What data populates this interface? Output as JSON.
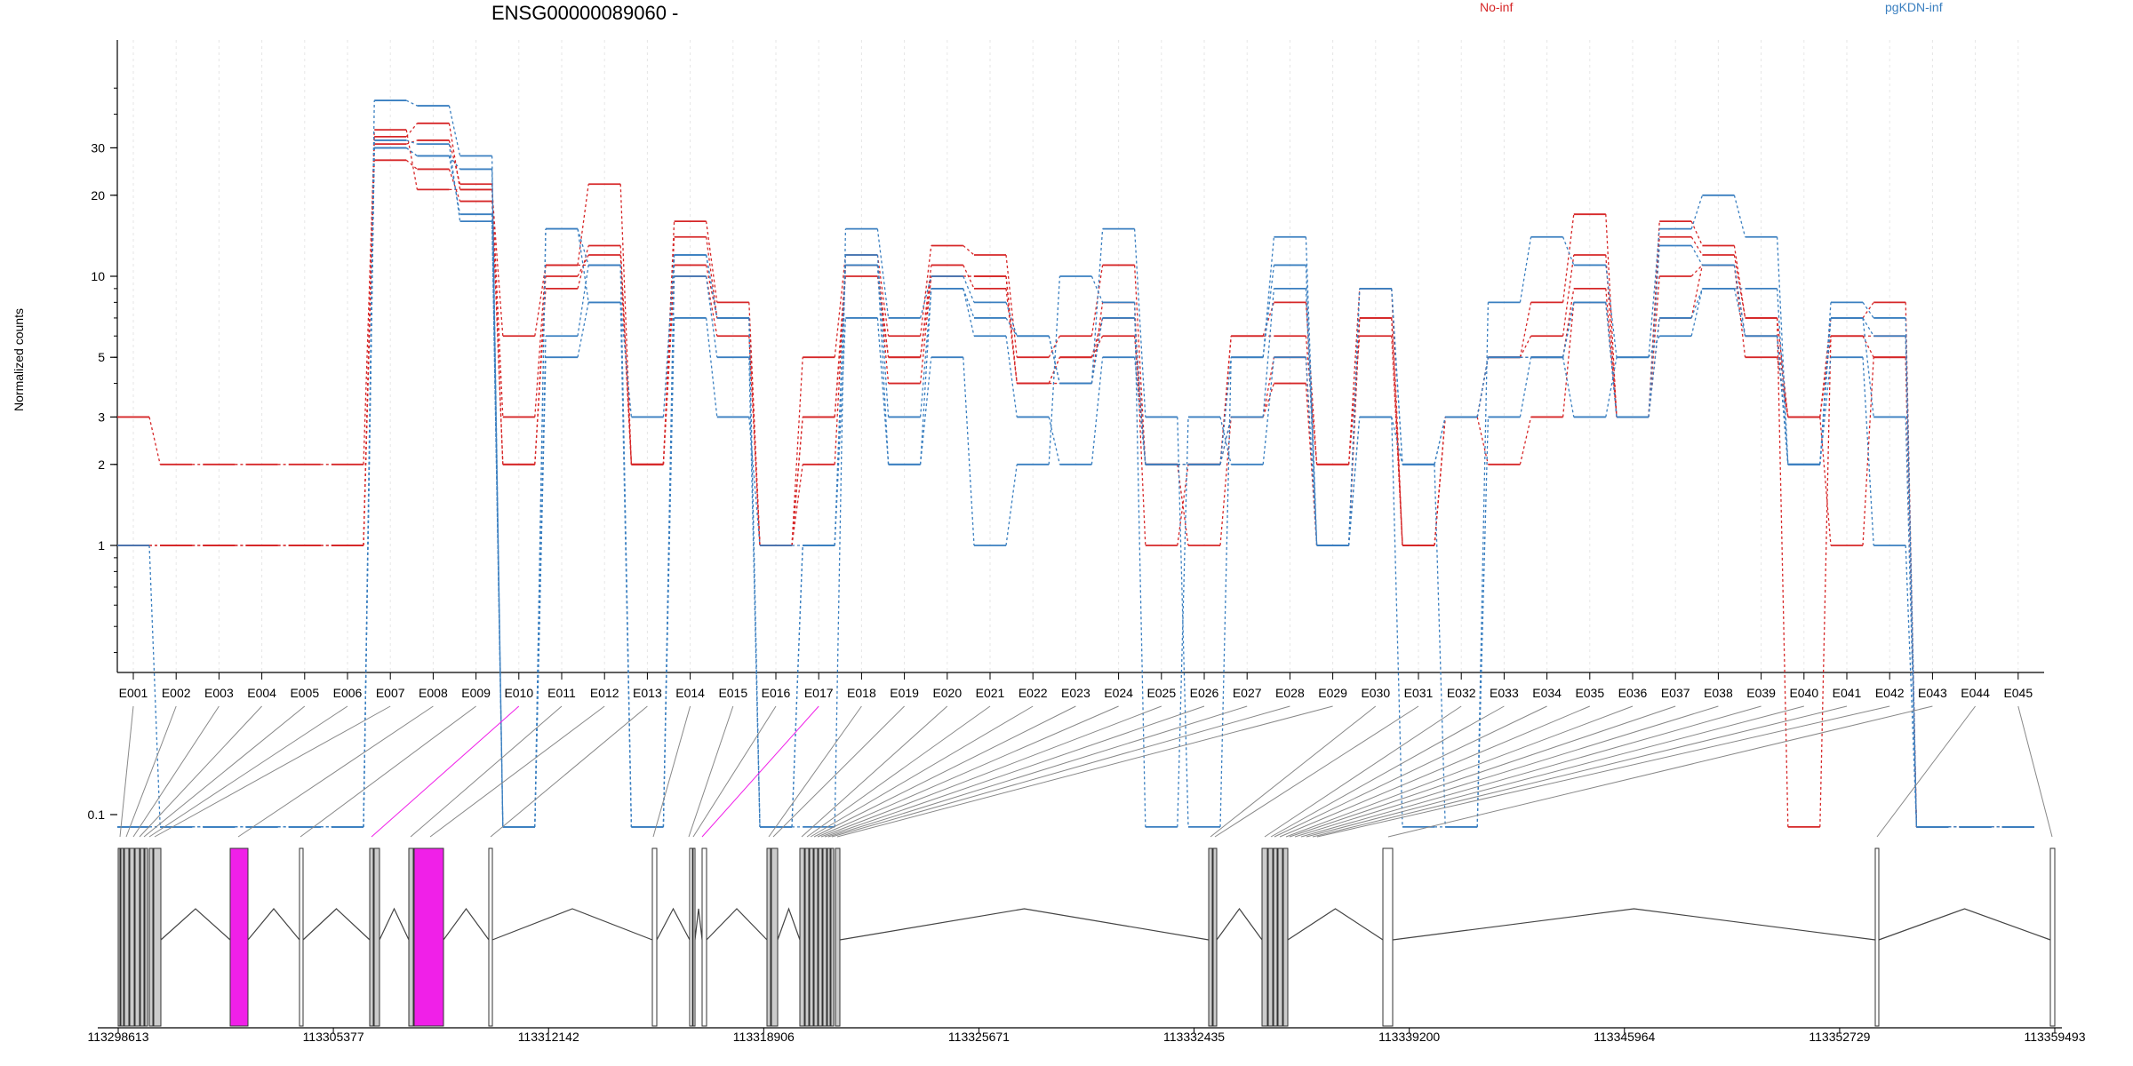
{
  "chart_data": {
    "type": "line",
    "title": "ENSG00000089060 -",
    "ylabel": "Normalized counts",
    "xlabel": "",
    "y_scale": "log",
    "y_ticks": [
      0.1,
      1,
      2,
      3,
      5,
      10,
      20,
      30
    ],
    "y_tick_labels": [
      "0.1",
      "1",
      "2",
      "3",
      "5",
      "10",
      "20",
      "30"
    ],
    "ylim": [
      0.085,
      60
    ],
    "grid": "vertical dotted",
    "legend_position": "top",
    "categories": [
      "E001",
      "E002",
      "E003",
      "E004",
      "E005",
      "E006",
      "E007",
      "E008",
      "E009",
      "E010",
      "E011",
      "E012",
      "E013",
      "E014",
      "E015",
      "E016",
      "E017",
      "E018",
      "E019",
      "E020",
      "E021",
      "E022",
      "E023",
      "E024",
      "E025",
      "E026",
      "E027",
      "E028",
      "E029",
      "E030",
      "E031",
      "E032",
      "E033",
      "E034",
      "E035",
      "E036",
      "E037",
      "E038",
      "E039",
      "E040",
      "E041",
      "E042",
      "E043",
      "E044",
      "E045"
    ],
    "legend": [
      {
        "name": "No-inf",
        "color": "#d62728"
      },
      {
        "name": "pgKDN-inf",
        "color": "#3a7fc0"
      }
    ],
    "series": [
      {
        "group": "No-inf",
        "color": "#d62728",
        "values": [
          3,
          2,
          2,
          2,
          2,
          2,
          33,
          37,
          21,
          6,
          11,
          22,
          2,
          16,
          8,
          1,
          5,
          12,
          6,
          13,
          12,
          5,
          6,
          11,
          2,
          2,
          6,
          8,
          2,
          9,
          1,
          3,
          5,
          8,
          17,
          3,
          16,
          13,
          7,
          3,
          7,
          8,
          0.09,
          0.09,
          0.09
        ]
      },
      {
        "group": "No-inf",
        "color": "#d62728",
        "values": [
          1,
          1,
          1,
          1,
          1,
          1,
          27,
          25,
          19,
          2,
          9,
          13,
          2,
          14,
          7,
          1,
          3,
          10,
          5,
          10,
          10,
          4,
          5,
          6,
          2,
          2,
          6,
          6,
          2,
          6,
          1,
          3,
          5,
          6,
          12,
          3,
          14,
          12,
          7,
          0.09,
          6,
          5,
          0.09,
          0.09,
          0.09
        ]
      },
      {
        "group": "No-inf",
        "color": "#d62728",
        "values": [
          1,
          1,
          1,
          1,
          1,
          1,
          31,
          32,
          22,
          3,
          11,
          11,
          2,
          11,
          7,
          1,
          2,
          11,
          5,
          11,
          9,
          4,
          5,
          7,
          2,
          1,
          3,
          5,
          1,
          7,
          1,
          3,
          5,
          5,
          9,
          3,
          10,
          11,
          6,
          3,
          6,
          6,
          0.09,
          0.09,
          0.09
        ]
      },
      {
        "group": "No-inf",
        "color": "#d62728",
        "values": [
          1,
          1,
          1,
          1,
          1,
          1,
          35,
          21,
          21,
          2,
          10,
          12,
          2,
          10,
          6,
          1,
          3,
          11,
          4,
          10,
          10,
          4,
          4,
          8,
          1,
          2,
          3,
          4,
          1,
          7,
          1,
          3,
          2,
          3,
          8,
          3,
          7,
          11,
          5,
          3,
          1,
          5,
          0.09,
          0.09,
          0.09
        ]
      },
      {
        "group": "pgKDN-inf",
        "color": "#3a7fc0",
        "values": [
          1,
          0.09,
          0.09,
          0.09,
          0.09,
          0.09,
          45,
          43,
          28,
          0.09,
          15,
          8,
          3,
          12,
          7,
          0.09,
          0.09,
          15,
          7,
          10,
          8,
          6,
          4,
          15,
          3,
          0.09,
          5,
          14,
          1,
          9,
          2,
          0.09,
          8,
          14,
          11,
          5,
          15,
          20,
          14,
          2,
          8,
          7,
          0.09,
          0.09,
          0.09
        ]
      },
      {
        "group": "pgKDN-inf",
        "color": "#3a7fc0",
        "values": [
          0.09,
          0.09,
          0.09,
          0.09,
          0.09,
          0.09,
          32,
          31,
          16,
          0.09,
          6,
          11,
          0.09,
          10,
          5,
          0.09,
          1,
          12,
          3,
          9,
          6,
          3,
          2,
          5,
          2,
          2,
          3,
          9,
          1,
          3,
          0.09,
          0.09,
          3,
          5,
          8,
          3,
          13,
          11,
          6,
          2,
          7,
          3,
          0.09,
          0.09,
          0.09
        ]
      },
      {
        "group": "pgKDN-inf",
        "color": "#3a7fc0",
        "values": [
          0.09,
          0.09,
          0.09,
          0.09,
          0.09,
          0.09,
          30,
          28,
          17,
          0.09,
          5,
          8,
          0.09,
          7,
          3,
          1,
          1,
          7,
          2,
          5,
          1,
          2,
          10,
          8,
          0.09,
          3,
          2,
          5,
          1,
          3,
          2,
          3,
          5,
          5,
          3,
          5,
          6,
          9,
          6,
          2,
          5,
          1,
          0.09,
          0.09,
          0.09
        ]
      },
      {
        "group": "pgKDN-inf",
        "color": "#3a7fc0",
        "values": [
          0.09,
          0.09,
          0.09,
          0.09,
          0.09,
          0.09,
          30,
          28,
          25,
          0.09,
          15,
          11,
          0.09,
          12,
          7,
          0.09,
          1,
          11,
          2,
          9,
          7,
          6,
          4,
          7,
          2,
          2,
          5,
          11,
          1,
          9,
          2,
          3,
          5,
          5,
          8,
          3,
          7,
          9,
          9,
          2,
          7,
          6,
          0.09,
          0.09,
          0.09
        ]
      }
    ],
    "gene_model": {
      "coord_ticks": [
        113298613,
        113305377,
        113312142,
        113318906,
        113325671,
        113332435,
        113339200,
        113345964,
        113352729,
        113359493
      ],
      "coord_labels": [
        "113298613",
        "113305377",
        "113312142",
        "113318906",
        "113325671",
        "113332435",
        "113339200",
        "113345964",
        "113352729",
        "113359493"
      ],
      "exon_color": "#cccccc",
      "highlight_color": "#f020e8",
      "novel_exon_color": "#ffffff",
      "highlighted_exons": [
        "E010",
        "E017"
      ]
    }
  }
}
